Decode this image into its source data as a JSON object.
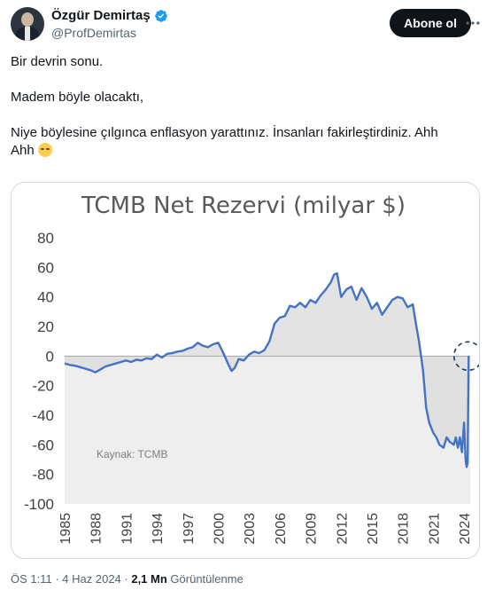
{
  "author": {
    "name": "Özgür Demirtaş",
    "handle": "@ProfDemirtas",
    "follow_label": "Abone ol"
  },
  "tweet": {
    "line1": "Bir devrin sonu.",
    "line2": "Madem böyle olacaktı,",
    "line3a": "Niye böylesine çılgınca enflasyon yarattınız. İnsanları fakirleştirdiniz. Ahh",
    "line3b": "Ahh"
  },
  "meta": {
    "time": "ÖS 1:11 · 4 Haz 2024 · ",
    "views_count": "2,1 Mn",
    "views_label": " Görüntülenme"
  },
  "icons": {
    "verified": "verified-badge-icon",
    "more": "more-options-icon",
    "emoji": "pensive-face-emoji"
  },
  "colors": {
    "accent": "#1d9bf0",
    "line": "#4472c4",
    "fill": "#e6e6e6",
    "title": "#595959"
  },
  "chart_data": {
    "type": "area",
    "title": "TCMB Net Rezervi (milyar $)",
    "source_note": "Kaynak: TCMB",
    "xlabel": "",
    "ylabel": "",
    "ylim": [
      -100,
      80
    ],
    "yticks": [
      "80",
      "60",
      "40",
      "20",
      "0",
      "-20",
      "-40",
      "-60",
      "-80",
      "-100"
    ],
    "xlim": [
      1985,
      2024.6
    ],
    "xticks": [
      "1985",
      "1988",
      "1991",
      "1994",
      "1997",
      "2000",
      "2003",
      "2006",
      "2009",
      "2012",
      "2015",
      "2018",
      "2021",
      "2024"
    ],
    "grid": false,
    "legend": "none",
    "highlight_circle": {
      "x": 2024.4,
      "y": 0
    },
    "series": [
      {
        "x": [
          1985,
          1985.5,
          1986,
          1986.5,
          1987,
          1987.5,
          1988,
          1988.5,
          1989,
          1989.5,
          1990,
          1990.5,
          1991,
          1991.5,
          1992,
          1992.5,
          1993,
          1993.5,
          1994,
          1994.5,
          1995,
          1995.5,
          1996,
          1996.5,
          1997,
          1997.5,
          1998,
          1998.5,
          1999,
          1999.5,
          2000,
          2000.5,
          2001,
          2001.3,
          2001.6,
          2002,
          2002.5,
          2003,
          2003.5,
          2004,
          2004.5,
          2005,
          2005.5,
          2006,
          2006.5,
          2007,
          2007.5,
          2008,
          2008.5,
          2009,
          2009.5,
          2010,
          2010.5,
          2011,
          2011.3,
          2011.6,
          2012,
          2012.5,
          2013,
          2013.5,
          2014,
          2014.5,
          2015,
          2015.5,
          2016,
          2016.5,
          2017,
          2017.5,
          2018,
          2018.5,
          2019,
          2019.3,
          2019.6,
          2020,
          2020.3,
          2020.6,
          2021,
          2021.3,
          2021.6,
          2022,
          2022.3,
          2022.6,
          2023,
          2023.2,
          2023.4,
          2023.6,
          2023.8,
          2024,
          2024.15,
          2024.25,
          2024.35,
          2024.45
        ],
        "y": [
          -5,
          -6,
          -6.5,
          -7.5,
          -8.5,
          -9.5,
          -11,
          -9,
          -7,
          -6,
          -5,
          -4,
          -3,
          -4,
          -2.5,
          -3,
          -1.5,
          -2,
          1,
          -1,
          1.5,
          2,
          3,
          3.5,
          5,
          6,
          9,
          7,
          6,
          8,
          9,
          2,
          -6,
          -10,
          -8,
          -2,
          -3,
          1,
          3,
          2,
          4,
          10,
          22,
          26,
          27,
          34,
          33,
          36,
          33,
          38,
          36,
          41,
          45,
          50,
          55,
          56,
          40,
          45,
          47,
          38,
          46,
          40,
          32,
          36,
          28,
          33,
          38,
          40,
          39,
          33,
          35,
          22,
          10,
          -10,
          -35,
          -45,
          -52,
          -55,
          -60,
          -62,
          -55,
          -58,
          -60,
          -55,
          -62,
          -55,
          -65,
          -45,
          -70,
          -75,
          -72,
          0
        ]
      }
    ]
  }
}
